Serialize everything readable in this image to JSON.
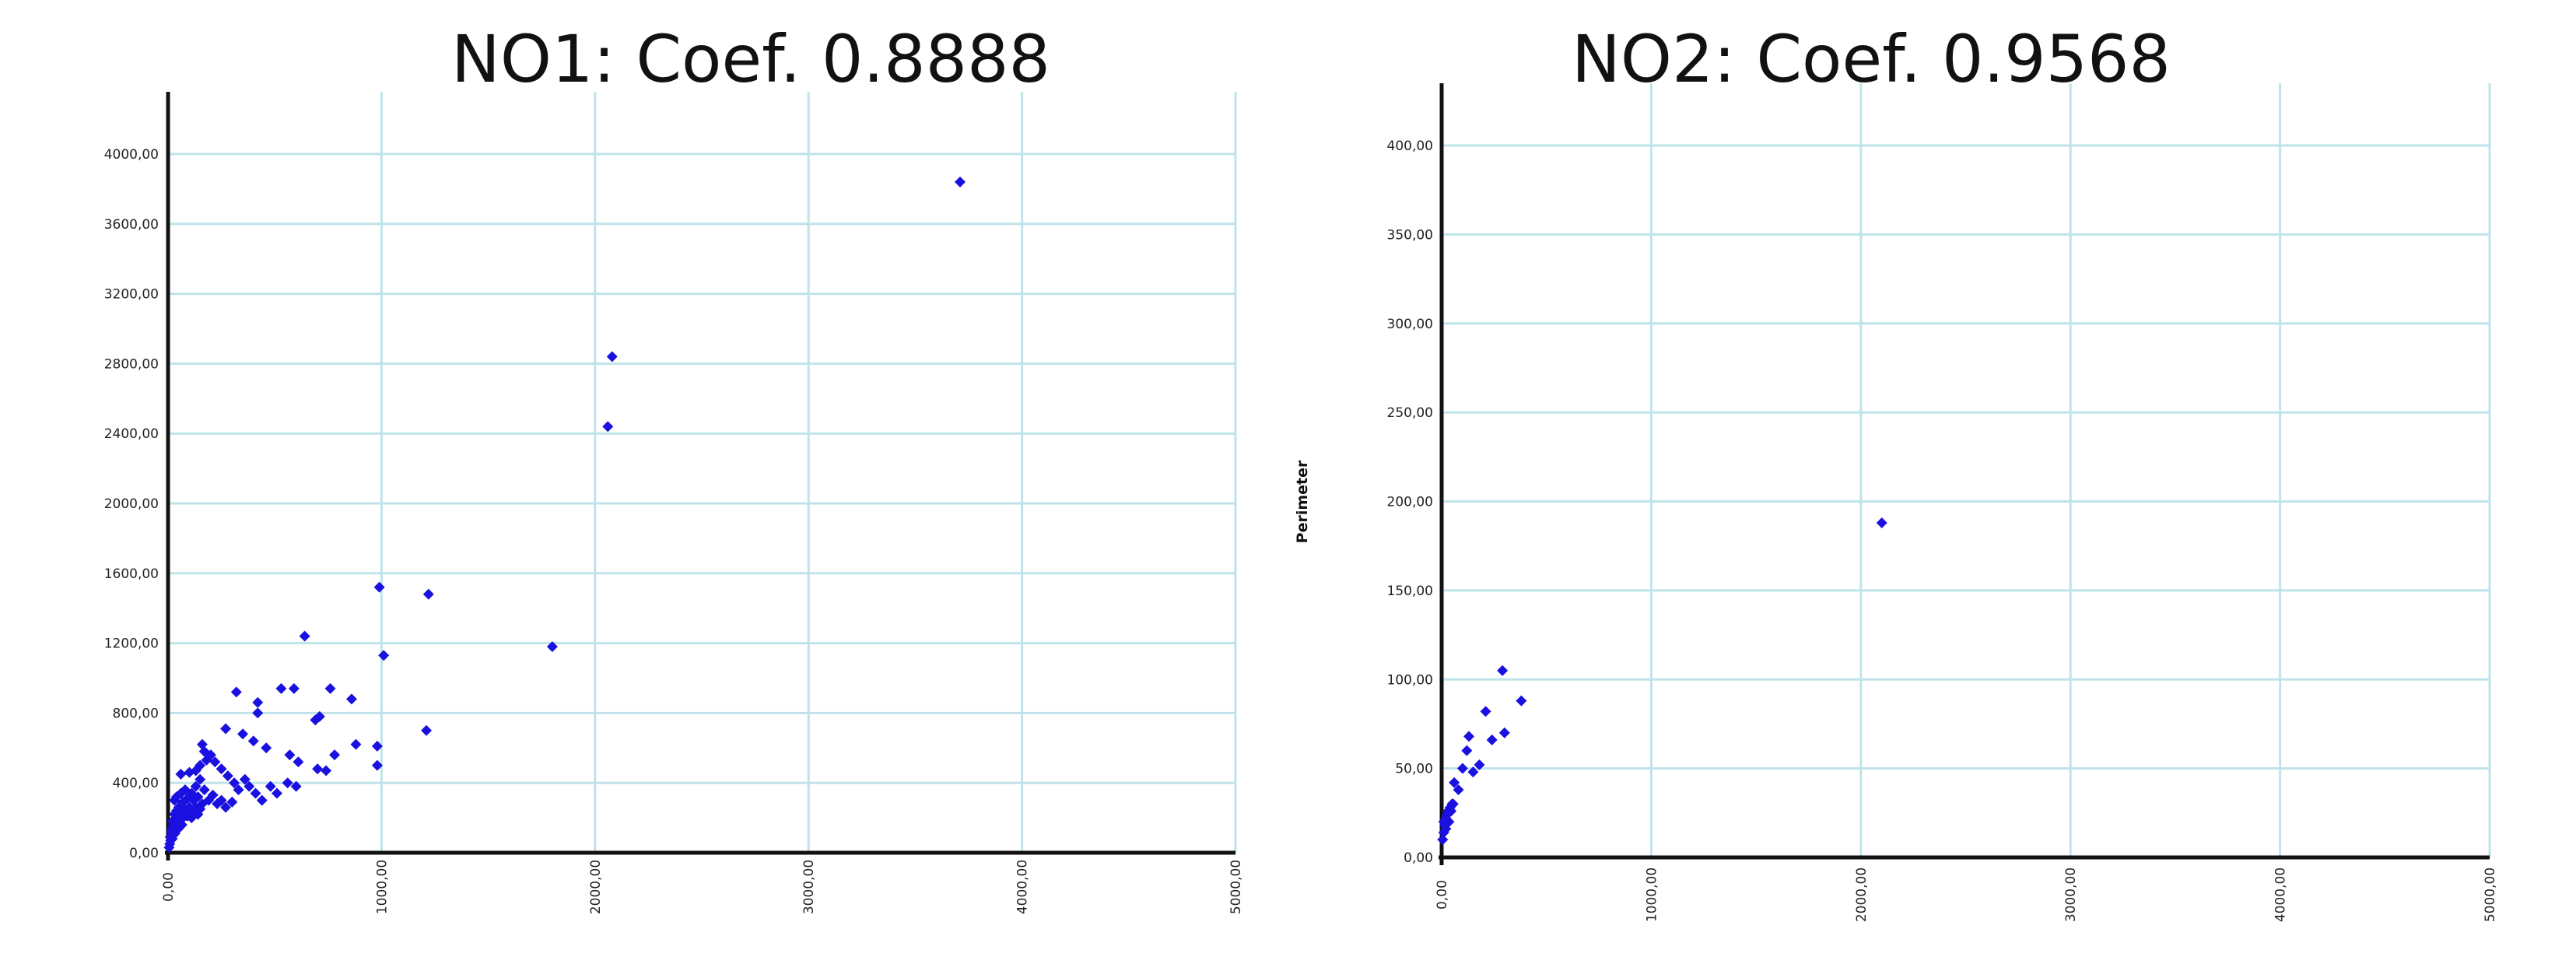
{
  "chart_data": [
    {
      "type": "scatter",
      "title": "NO1: Coef. 0.8888",
      "xlabel": "",
      "ylabel": "",
      "xlim": [
        0,
        5000
      ],
      "ylim": [
        0,
        4000
      ],
      "grid": true,
      "y_ticks": [
        "0,00",
        "400,00",
        "800,00",
        "1200,00",
        "1600,00",
        "2000,00",
        "2400,00",
        "2800,00",
        "3200,00",
        "3600,00",
        "4000,00"
      ],
      "x_ticks": [
        "0,00",
        "1000,00",
        "2000,00",
        "3000,00",
        "4000,00",
        "5000,00"
      ],
      "color": "#1a10e0",
      "x": [
        3710,
        2080,
        2060,
        1800,
        990,
        1220,
        1010,
        1210,
        640,
        980,
        320,
        590,
        760,
        530,
        420,
        860,
        710,
        880,
        780,
        980,
        690,
        420,
        270,
        350,
        400,
        460,
        570,
        610,
        700,
        740,
        160,
        170,
        60,
        100,
        130,
        150,
        180,
        200,
        220,
        250,
        280,
        310,
        330,
        360,
        380,
        410,
        440,
        480,
        510,
        560,
        600,
        30,
        40,
        50,
        60,
        70,
        80,
        90,
        100,
        110,
        120,
        130,
        140,
        150,
        160,
        170,
        190,
        210,
        230,
        250,
        270,
        300,
        20,
        30,
        40,
        50,
        60,
        70,
        80,
        90,
        100,
        110,
        120,
        130,
        140,
        150,
        10,
        15,
        20,
        25,
        30,
        35,
        40,
        45,
        50,
        55,
        60,
        65,
        70,
        5,
        8,
        12,
        16,
        20,
        24,
        28,
        32,
        36,
        40
      ],
      "y": [
        3840,
        2840,
        2440,
        1180,
        1520,
        1480,
        1130,
        700,
        1240,
        610,
        920,
        940,
        940,
        940,
        860,
        880,
        780,
        620,
        560,
        500,
        760,
        800,
        710,
        680,
        640,
        600,
        560,
        520,
        480,
        470,
        620,
        580,
        450,
        460,
        470,
        500,
        530,
        560,
        520,
        480,
        440,
        400,
        360,
        420,
        380,
        340,
        300,
        380,
        340,
        400,
        380,
        300,
        320,
        260,
        340,
        290,
        360,
        310,
        260,
        340,
        300,
        380,
        320,
        420,
        280,
        360,
        300,
        330,
        280,
        300,
        260,
        290,
        180,
        220,
        240,
        200,
        260,
        220,
        250,
        210,
        240,
        200,
        230,
        260,
        220,
        250,
        90,
        120,
        140,
        160,
        130,
        170,
        150,
        180,
        140,
        170,
        190,
        160,
        200,
        30,
        50,
        70,
        90,
        80,
        100,
        120,
        110,
        130,
        150
      ]
    },
    {
      "type": "scatter",
      "title": "NO2: Coef. 0.9568",
      "xlabel": "",
      "ylabel": "Perimeter",
      "xlim": [
        0,
        5000
      ],
      "ylim": [
        0,
        400
      ],
      "grid": true,
      "y_ticks": [
        "0,00",
        "50,00",
        "100,00",
        "150,00",
        "200,00",
        "250,00",
        "300,00",
        "350,00",
        "400,00"
      ],
      "x_ticks": [
        "0,00",
        "1000,00",
        "2000,00",
        "3000,00",
        "4000,00",
        "5000,00"
      ],
      "color": "#1a10e0",
      "x": [
        2100,
        290,
        380,
        300,
        240,
        180,
        210,
        150,
        120,
        100,
        130,
        60,
        80,
        40,
        50,
        20,
        30,
        10,
        15,
        25,
        35,
        5,
        45,
        55,
        20,
        10
      ],
      "y": [
        188,
        105,
        88,
        70,
        66,
        52,
        82,
        48,
        60,
        50,
        68,
        42,
        38,
        28,
        30,
        22,
        26,
        14,
        18,
        24,
        20,
        10,
        26,
        30,
        16,
        20
      ]
    }
  ]
}
